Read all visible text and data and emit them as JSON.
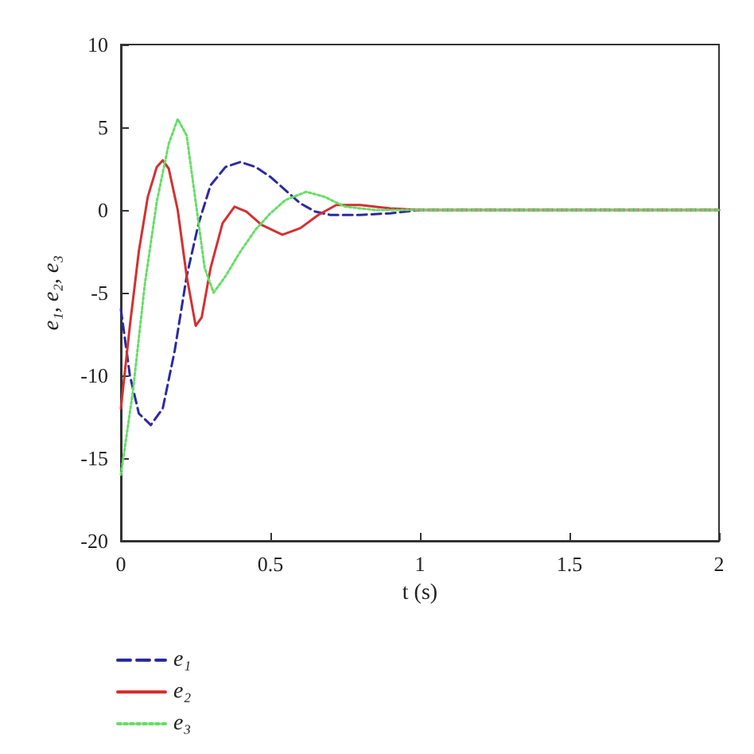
{
  "chart_data": {
    "type": "line",
    "xlabel": "t (s)",
    "ylabel": "e₁, e₂, e₃",
    "xlim": [
      0,
      2
    ],
    "xticks": [
      0,
      0.5,
      1,
      1.5,
      2
    ],
    "ylim": [
      -20,
      10
    ],
    "yticks": [
      -20,
      -15,
      -10,
      -5,
      0,
      5,
      10
    ],
    "grid": false,
    "legend": "bottom left",
    "marker": "none",
    "series": [
      {
        "name": "e₁",
        "color": "#2b2b9e",
        "line_style": "dashed",
        "x": [
          0,
          0.03,
          0.06,
          0.1,
          0.14,
          0.18,
          0.22,
          0.26,
          0.3,
          0.35,
          0.4,
          0.45,
          0.5,
          0.55,
          0.6,
          0.65,
          0.7,
          0.8,
          0.9,
          1.0,
          1.2,
          2
        ],
        "values": [
          -6,
          -10,
          -12.3,
          -13,
          -12,
          -8.5,
          -4,
          -0.8,
          1.5,
          2.6,
          2.9,
          2.6,
          2,
          1.2,
          0.4,
          -0.1,
          -0.3,
          -0.3,
          -0.2,
          0,
          0,
          0
        ]
      },
      {
        "name": "e₂",
        "color": "#d43030",
        "line_style": "solid",
        "x": [
          0,
          0.03,
          0.06,
          0.09,
          0.12,
          0.14,
          0.16,
          0.19,
          0.22,
          0.25,
          0.27,
          0.3,
          0.34,
          0.38,
          0.42,
          0.47,
          0.54,
          0.6,
          0.66,
          0.72,
          0.8,
          0.9,
          1.0,
          2
        ],
        "values": [
          -12,
          -7,
          -2.5,
          0.8,
          2.6,
          3,
          2.5,
          0,
          -4,
          -7,
          -6.5,
          -3.5,
          -0.8,
          0.2,
          -0.1,
          -0.9,
          -1.5,
          -1.1,
          -0.3,
          0.3,
          0.3,
          0.1,
          0,
          0
        ]
      },
      {
        "name": "e₃",
        "color": "#66dd66",
        "line_style": "dotted",
        "x": [
          0,
          0.04,
          0.08,
          0.12,
          0.16,
          0.19,
          0.22,
          0.25,
          0.28,
          0.31,
          0.35,
          0.4,
          0.45,
          0.5,
          0.55,
          0.62,
          0.68,
          0.75,
          0.85,
          2
        ],
        "values": [
          -16,
          -11,
          -4.5,
          0.5,
          4,
          5.5,
          4.5,
          0.5,
          -3.5,
          -5,
          -4,
          -2.5,
          -1.2,
          -0.2,
          0.6,
          1.1,
          0.8,
          0.2,
          0,
          0
        ]
      }
    ]
  }
}
